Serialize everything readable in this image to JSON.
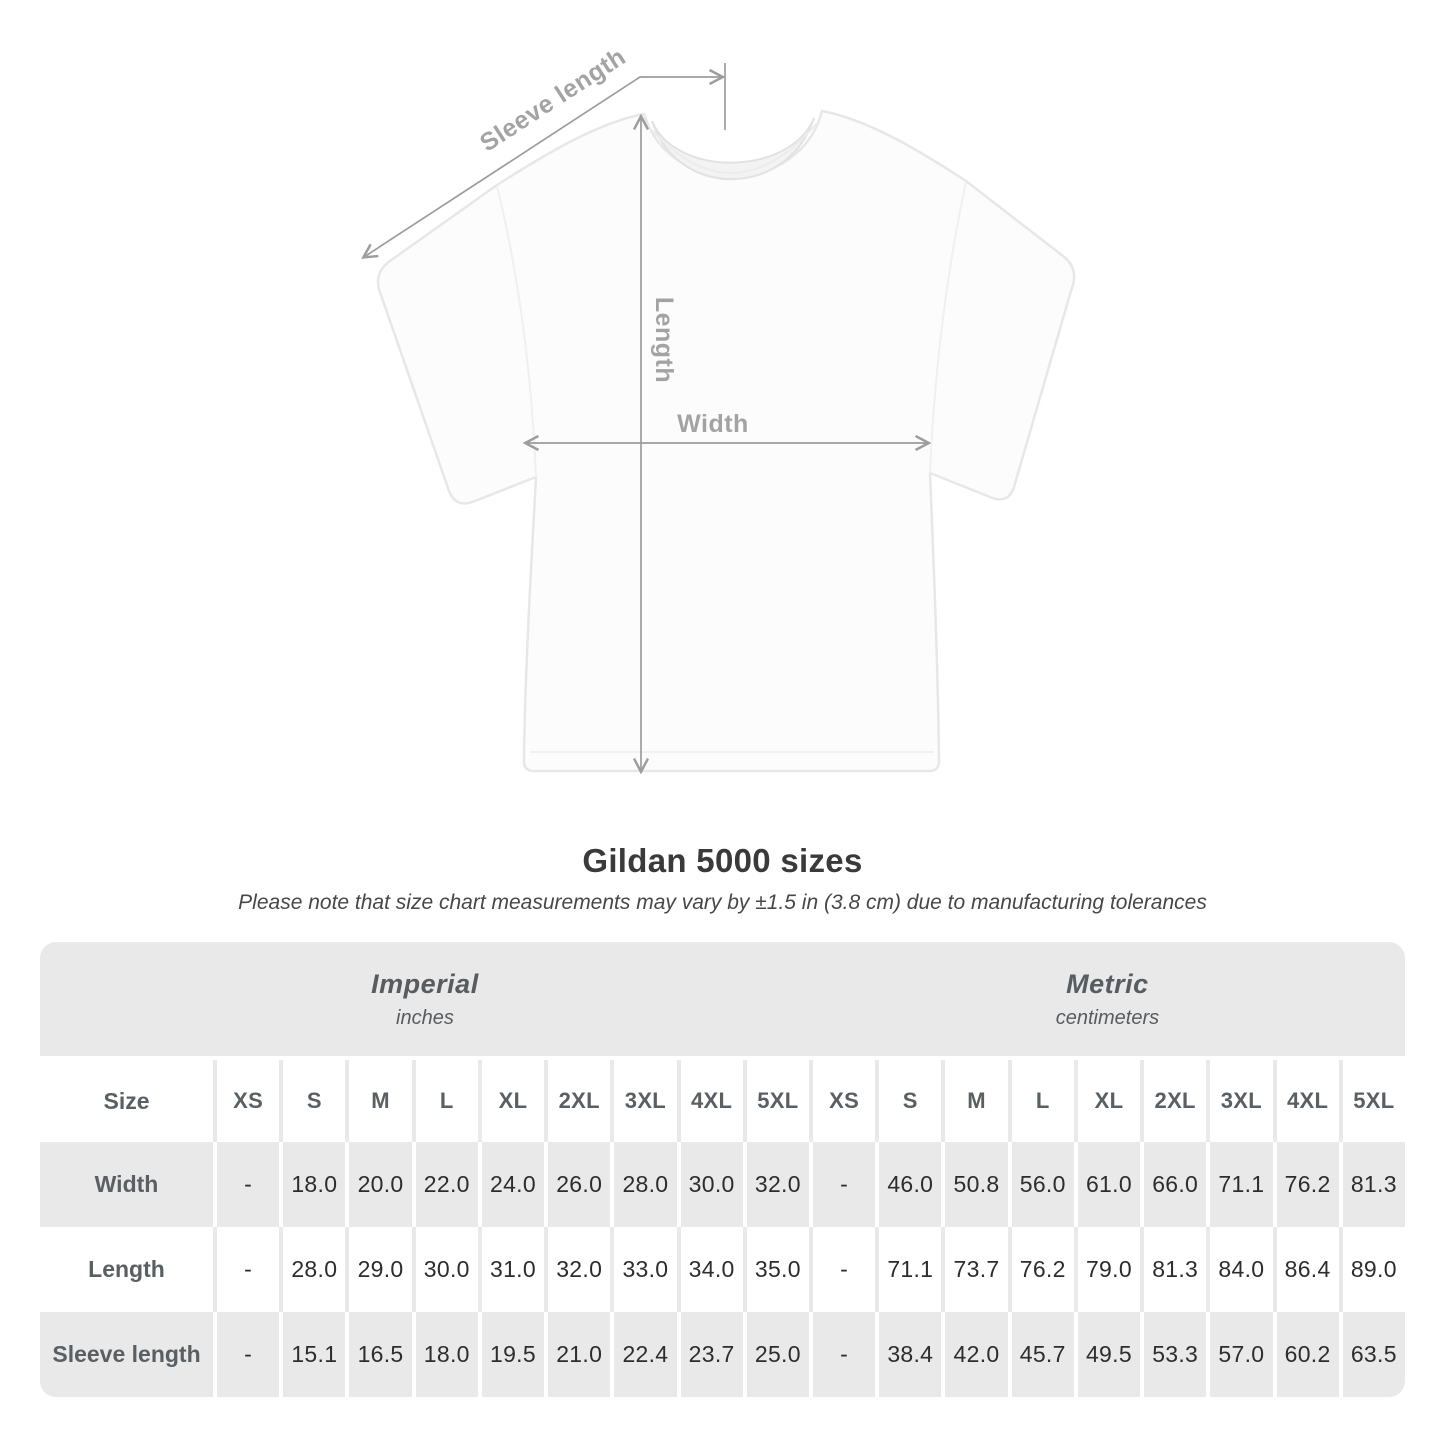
{
  "title": "Gildan 5000 sizes",
  "subtitle": "Please note that size chart measurements may vary by ±1.5 in (3.8 cm) due to manufacturing tolerances",
  "diagram": {
    "labels": {
      "sleeve_length": "Sleeve length",
      "length": "Length",
      "width": "Width"
    }
  },
  "table": {
    "groups": [
      {
        "label": "Imperial",
        "unit": "inches"
      },
      {
        "label": "Metric",
        "unit": "centimeters"
      }
    ],
    "size_header": "Size",
    "sizes": [
      "XS",
      "S",
      "M",
      "L",
      "XL",
      "2XL",
      "3XL",
      "4XL",
      "5XL"
    ],
    "rows": [
      {
        "label": "Width",
        "imperial": [
          "-",
          "18.0",
          "20.0",
          "22.0",
          "24.0",
          "26.0",
          "28.0",
          "30.0",
          "32.0"
        ],
        "metric": [
          "-",
          "46.0",
          "50.8",
          "56.0",
          "61.0",
          "66.0",
          "71.1",
          "76.2",
          "81.3"
        ]
      },
      {
        "label": "Length",
        "imperial": [
          "-",
          "28.0",
          "29.0",
          "30.0",
          "31.0",
          "32.0",
          "33.0",
          "34.0",
          "35.0"
        ],
        "metric": [
          "-",
          "71.1",
          "73.7",
          "76.2",
          "79.0",
          "81.3",
          "84.0",
          "86.4",
          "89.0"
        ]
      },
      {
        "label": "Sleeve length",
        "imperial": [
          "-",
          "15.1",
          "16.5",
          "18.0",
          "19.5",
          "21.0",
          "22.4",
          "23.7",
          "25.0"
        ],
        "metric": [
          "-",
          "38.4",
          "42.0",
          "45.7",
          "49.5",
          "53.3",
          "57.0",
          "60.2",
          "63.5"
        ]
      }
    ]
  },
  "colors": {
    "measure_line": "#9d9d9d",
    "measure_label": "#a3a3a3",
    "table_stripe": "#e9e9e9",
    "header_text": "#575c60",
    "value_text": "#2d2d2d"
  }
}
